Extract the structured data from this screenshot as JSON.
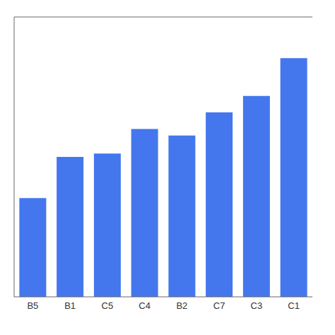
{
  "chart_data": {
    "type": "bar",
    "categories": [
      "B5",
      "B1",
      "C5",
      "C4",
      "B2",
      "C7",
      "C3",
      "C1"
    ],
    "values": [
      7.2,
      7.45,
      7.47,
      7.62,
      7.58,
      7.72,
      7.82,
      8.05
    ],
    "color": "#4477ee",
    "ylim": [
      6.6,
      8.3
    ],
    "grid": false,
    "tick_labels": "x"
  }
}
